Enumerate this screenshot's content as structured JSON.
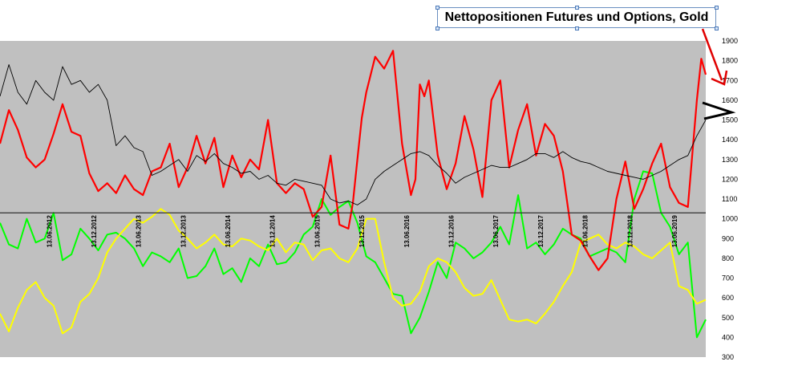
{
  "chart_data": {
    "type": "line",
    "title": "Nettopositionen Futures und Options, Gold",
    "x_tick_labels": [
      "13.06.2012",
      "13.12.2012",
      "13.06.2013",
      "13.12.2013",
      "13.06.2014",
      "13.12.2014",
      "13.06.2015",
      "13.12.2015",
      "13.06.2016",
      "13.12.2016",
      "13.06.2017",
      "13.12.2017",
      "13.06.2018",
      "13.12.2018",
      "13.06.2019"
    ],
    "y_tick_labels": [
      "1900",
      "1800",
      "1700",
      "1600",
      "1500",
      "1400",
      "1300",
      "1200",
      "1100",
      "1000",
      "900",
      "800",
      "700",
      "600",
      "500",
      "400",
      "300"
    ],
    "ylim": [
      300,
      1900
    ],
    "xlim": [
      2011.9,
      2019.8
    ],
    "reference_line": 1030,
    "grid": false,
    "plot_background": "#c0c0c0",
    "series": [
      {
        "color": "#ff0000",
        "x": [
          2011.9,
          2012.0,
          2012.1,
          2012.2,
          2012.3,
          2012.4,
          2012.5,
          2012.6,
          2012.7,
          2012.8,
          2012.9,
          2013.0,
          2013.1,
          2013.2,
          2013.3,
          2013.4,
          2013.5,
          2013.6,
          2013.7,
          2013.8,
          2013.9,
          2014.0,
          2014.1,
          2014.2,
          2014.3,
          2014.4,
          2014.5,
          2014.6,
          2014.7,
          2014.8,
          2014.9,
          2015.0,
          2015.1,
          2015.2,
          2015.3,
          2015.4,
          2015.5,
          2015.6,
          2015.7,
          2015.8,
          2015.85,
          2015.9,
          2015.95,
          2016.0,
          2016.1,
          2016.2,
          2016.3,
          2016.4,
          2016.5,
          2016.55,
          2016.6,
          2016.65,
          2016.7,
          2016.8,
          2016.9,
          2017.0,
          2017.1,
          2017.2,
          2017.3,
          2017.4,
          2017.5,
          2017.6,
          2017.7,
          2017.8,
          2017.9,
          2018.0,
          2018.1,
          2018.2,
          2018.3,
          2018.4,
          2018.5,
          2018.6,
          2018.7,
          2018.8,
          2018.9,
          2019.0,
          2019.1,
          2019.2,
          2019.3,
          2019.4,
          2019.5,
          2019.6,
          2019.7,
          2019.75,
          2019.8
        ],
        "values": [
          1380,
          1550,
          1450,
          1310,
          1260,
          1300,
          1430,
          1580,
          1440,
          1420,
          1230,
          1140,
          1180,
          1130,
          1220,
          1150,
          1120,
          1240,
          1260,
          1380,
          1160,
          1260,
          1420,
          1280,
          1410,
          1160,
          1320,
          1210,
          1300,
          1250,
          1500,
          1180,
          1130,
          1180,
          1150,
          1010,
          1060,
          1320,
          970,
          950,
          1080,
          1300,
          1510,
          1640,
          1820,
          1760,
          1850,
          1380,
          1120,
          1200,
          1680,
          1620,
          1700,
          1320,
          1150,
          1280,
          1520,
          1350,
          1110,
          1600,
          1700,
          1260,
          1450,
          1580,
          1320,
          1480,
          1420,
          1240,
          920,
          890,
          810,
          740,
          800,
          1100,
          1290,
          1050,
          1150,
          1280,
          1380,
          1160,
          1080,
          1060,
          1600,
          1810,
          1730
        ]
      },
      {
        "color": "#000000",
        "x": [
          2011.9,
          2012.0,
          2012.1,
          2012.2,
          2012.3,
          2012.4,
          2012.5,
          2012.6,
          2012.7,
          2012.8,
          2012.9,
          2013.0,
          2013.1,
          2013.2,
          2013.3,
          2013.4,
          2013.5,
          2013.6,
          2013.7,
          2013.8,
          2013.9,
          2014.0,
          2014.1,
          2014.2,
          2014.3,
          2014.4,
          2014.5,
          2014.6,
          2014.7,
          2014.8,
          2014.9,
          2015.0,
          2015.1,
          2015.2,
          2015.3,
          2015.4,
          2015.5,
          2015.6,
          2015.7,
          2015.8,
          2015.9,
          2016.0,
          2016.1,
          2016.2,
          2016.3,
          2016.4,
          2016.5,
          2016.6,
          2016.7,
          2016.8,
          2016.9,
          2017.0,
          2017.1,
          2017.2,
          2017.3,
          2017.4,
          2017.5,
          2017.6,
          2017.7,
          2017.8,
          2017.9,
          2018.0,
          2018.1,
          2018.2,
          2018.3,
          2018.4,
          2018.5,
          2018.6,
          2018.7,
          2018.8,
          2018.9,
          2019.0,
          2019.1,
          2019.2,
          2019.3,
          2019.4,
          2019.5,
          2019.6,
          2019.7,
          2019.8
        ],
        "values": [
          1620,
          1780,
          1640,
          1580,
          1700,
          1640,
          1600,
          1770,
          1680,
          1700,
          1640,
          1680,
          1600,
          1370,
          1420,
          1360,
          1340,
          1220,
          1240,
          1270,
          1300,
          1240,
          1320,
          1290,
          1330,
          1280,
          1260,
          1230,
          1240,
          1200,
          1220,
          1180,
          1170,
          1200,
          1190,
          1180,
          1170,
          1100,
          1080,
          1090,
          1070,
          1100,
          1200,
          1240,
          1270,
          1300,
          1330,
          1340,
          1320,
          1270,
          1230,
          1180,
          1210,
          1230,
          1250,
          1270,
          1260,
          1260,
          1280,
          1300,
          1330,
          1330,
          1310,
          1340,
          1310,
          1290,
          1280,
          1260,
          1240,
          1230,
          1220,
          1210,
          1200,
          1220,
          1240,
          1270,
          1300,
          1320,
          1420,
          1500
        ]
      },
      {
        "color": "#00ff00",
        "x": [
          2011.9,
          2012.0,
          2012.1,
          2012.2,
          2012.3,
          2012.4,
          2012.5,
          2012.6,
          2012.7,
          2012.8,
          2012.9,
          2013.0,
          2013.1,
          2013.2,
          2013.3,
          2013.4,
          2013.5,
          2013.6,
          2013.7,
          2013.8,
          2013.9,
          2014.0,
          2014.1,
          2014.2,
          2014.3,
          2014.4,
          2014.5,
          2014.6,
          2014.7,
          2014.8,
          2014.9,
          2015.0,
          2015.1,
          2015.2,
          2015.3,
          2015.4,
          2015.5,
          2015.6,
          2015.7,
          2015.8,
          2015.9,
          2016.0,
          2016.1,
          2016.2,
          2016.3,
          2016.4,
          2016.5,
          2016.6,
          2016.7,
          2016.8,
          2016.9,
          2017.0,
          2017.1,
          2017.2,
          2017.3,
          2017.4,
          2017.5,
          2017.6,
          2017.7,
          2017.8,
          2017.9,
          2018.0,
          2018.1,
          2018.2,
          2018.3,
          2018.4,
          2018.5,
          2018.6,
          2018.7,
          2018.8,
          2018.9,
          2019.0,
          2019.1,
          2019.2,
          2019.3,
          2019.4,
          2019.5,
          2019.6,
          2019.7,
          2019.8
        ],
        "values": [
          980,
          870,
          850,
          1000,
          880,
          900,
          1030,
          790,
          820,
          950,
          900,
          840,
          920,
          930,
          900,
          850,
          760,
          830,
          810,
          780,
          850,
          700,
          710,
          760,
          850,
          720,
          750,
          680,
          800,
          760,
          870,
          770,
          780,
          830,
          920,
          960,
          1100,
          1020,
          1060,
          1090,
          980,
          810,
          780,
          700,
          620,
          610,
          420,
          500,
          630,
          780,
          700,
          880,
          850,
          800,
          830,
          880,
          960,
          870,
          1120,
          850,
          880,
          820,
          870,
          950,
          920,
          900,
          810,
          830,
          850,
          830,
          780,
          1100,
          1240,
          1230,
          1030,
          960,
          820,
          880,
          400,
          490
        ]
      },
      {
        "color": "#ffff00",
        "x": [
          2011.9,
          2012.0,
          2012.1,
          2012.2,
          2012.3,
          2012.4,
          2012.5,
          2012.6,
          2012.7,
          2012.8,
          2012.9,
          2013.0,
          2013.1,
          2013.2,
          2013.3,
          2013.4,
          2013.5,
          2013.6,
          2013.7,
          2013.8,
          2013.9,
          2014.0,
          2014.1,
          2014.2,
          2014.3,
          2014.4,
          2014.5,
          2014.6,
          2014.7,
          2014.8,
          2014.9,
          2015.0,
          2015.1,
          2015.2,
          2015.3,
          2015.4,
          2015.5,
          2015.6,
          2015.7,
          2015.8,
          2015.9,
          2016.0,
          2016.1,
          2016.2,
          2016.3,
          2016.4,
          2016.5,
          2016.6,
          2016.7,
          2016.8,
          2016.9,
          2017.0,
          2017.1,
          2017.2,
          2017.3,
          2017.4,
          2017.5,
          2017.6,
          2017.7,
          2017.8,
          2017.9,
          2018.0,
          2018.1,
          2018.2,
          2018.3,
          2018.4,
          2018.5,
          2018.6,
          2018.7,
          2018.8,
          2018.9,
          2019.0,
          2019.1,
          2019.2,
          2019.3,
          2019.4,
          2019.5,
          2019.6,
          2019.7,
          2019.8
        ],
        "values": [
          520,
          430,
          550,
          640,
          680,
          600,
          560,
          420,
          450,
          580,
          620,
          700,
          830,
          900,
          950,
          1000,
          980,
          1010,
          1050,
          1020,
          940,
          900,
          850,
          880,
          920,
          870,
          860,
          900,
          890,
          860,
          840,
          900,
          830,
          880,
          870,
          790,
          840,
          850,
          800,
          780,
          850,
          1000,
          1000,
          780,
          600,
          560,
          570,
          630,
          760,
          800,
          780,
          730,
          650,
          610,
          620,
          690,
          590,
          490,
          480,
          490,
          470,
          520,
          580,
          660,
          730,
          880,
          900,
          920,
          870,
          850,
          880,
          860,
          820,
          800,
          840,
          880,
          660,
          640,
          570,
          590
        ]
      }
    ]
  }
}
